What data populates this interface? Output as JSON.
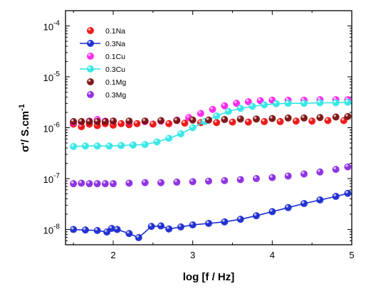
{
  "chart_data": {
    "type": "scatter",
    "title": "",
    "xlabel": "log [f / Hz]",
    "ylabel": "σ'/ S.cm",
    "ylabel_sup": "-1",
    "xlim": [
      1.4,
      5.0
    ],
    "ylim_log10": [
      -8.3,
      -3.7
    ],
    "yscale": "log",
    "x_ticks": [
      2,
      3,
      4,
      5
    ],
    "x_tick_labels": [
      "2",
      "3",
      "4",
      "5"
    ],
    "y_ticks_log10": [
      -8,
      -7,
      -6,
      -5,
      -4
    ],
    "y_tick_labels": [
      {
        "base": "10",
        "exp": "-8"
      },
      {
        "base": "10",
        "exp": "-7"
      },
      {
        "base": "10",
        "exp": "-6"
      },
      {
        "base": "10",
        "exp": "-5"
      },
      {
        "base": "10",
        "exp": "-4"
      }
    ],
    "grid": false,
    "legend_position": "top-left",
    "series": [
      {
        "name": "0.1Na",
        "color": "#ee1111",
        "line": false,
        "points_log10": [
          [
            1.5,
            -5.93
          ],
          [
            1.6,
            -5.98
          ],
          [
            1.7,
            -5.93
          ],
          [
            1.8,
            -5.96
          ],
          [
            1.9,
            -5.92
          ],
          [
            2.0,
            -5.95
          ],
          [
            2.1,
            -5.92
          ],
          [
            2.2,
            -5.94
          ],
          [
            2.3,
            -5.92
          ],
          [
            2.5,
            -5.93
          ],
          [
            2.7,
            -5.92
          ],
          [
            2.9,
            -5.91
          ],
          [
            3.1,
            -5.9
          ],
          [
            3.3,
            -5.9
          ],
          [
            3.5,
            -5.89
          ],
          [
            3.7,
            -5.89
          ],
          [
            3.9,
            -5.88
          ],
          [
            4.1,
            -5.88
          ],
          [
            4.3,
            -5.87
          ],
          [
            4.5,
            -5.87
          ],
          [
            4.7,
            -5.86
          ],
          [
            4.9,
            -5.86
          ]
        ]
      },
      {
        "name": "0.3Na",
        "color": "#1a2bd0",
        "line": true,
        "points_log10": [
          [
            1.5,
            -8.0
          ],
          [
            1.65,
            -8.01
          ],
          [
            1.8,
            -8.02
          ],
          [
            1.92,
            -8.05
          ],
          [
            1.98,
            -7.98
          ],
          [
            2.05,
            -8.0
          ],
          [
            2.2,
            -8.08
          ],
          [
            2.32,
            -8.16
          ],
          [
            2.48,
            -7.94
          ],
          [
            2.6,
            -7.93
          ],
          [
            2.7,
            -7.99
          ],
          [
            2.85,
            -7.95
          ],
          [
            3.0,
            -7.91
          ],
          [
            3.2,
            -7.88
          ],
          [
            3.4,
            -7.85
          ],
          [
            3.6,
            -7.8
          ],
          [
            3.8,
            -7.73
          ],
          [
            4.0,
            -7.65
          ],
          [
            4.2,
            -7.57
          ],
          [
            4.4,
            -7.49
          ],
          [
            4.6,
            -7.42
          ],
          [
            4.8,
            -7.35
          ],
          [
            4.95,
            -7.29
          ]
        ]
      },
      {
        "name": "0.1Cu",
        "color": "#ff22ee",
        "line": false,
        "points_log10": [
          [
            1.5,
            -5.9
          ],
          [
            1.6,
            -5.88
          ],
          [
            1.7,
            -5.87
          ],
          [
            1.8,
            -5.84
          ],
          [
            1.9,
            -5.87
          ],
          [
            2.0,
            -5.87
          ],
          [
            2.2,
            -5.88
          ],
          [
            2.4,
            -5.88
          ],
          [
            2.6,
            -5.87
          ],
          [
            2.8,
            -5.85
          ],
          [
            2.95,
            -5.8
          ],
          [
            3.1,
            -5.72
          ],
          [
            3.25,
            -5.64
          ],
          [
            3.4,
            -5.57
          ],
          [
            3.55,
            -5.52
          ],
          [
            3.7,
            -5.49
          ],
          [
            3.85,
            -5.47
          ],
          [
            4.0,
            -5.46
          ],
          [
            4.2,
            -5.46
          ],
          [
            4.4,
            -5.46
          ],
          [
            4.6,
            -5.45
          ],
          [
            4.8,
            -5.45
          ],
          [
            4.95,
            -5.45
          ]
        ]
      },
      {
        "name": "0.3Cu",
        "color": "#33e6e6",
        "line": true,
        "points_log10": [
          [
            1.5,
            -6.37
          ],
          [
            1.65,
            -6.36
          ],
          [
            1.8,
            -6.36
          ],
          [
            1.95,
            -6.36
          ],
          [
            2.1,
            -6.35
          ],
          [
            2.25,
            -6.34
          ],
          [
            2.4,
            -6.33
          ],
          [
            2.55,
            -6.28
          ],
          [
            2.7,
            -6.21
          ],
          [
            2.85,
            -6.12
          ],
          [
            3.0,
            -6.0
          ],
          [
            3.15,
            -5.88
          ],
          [
            3.3,
            -5.77
          ],
          [
            3.45,
            -5.68
          ],
          [
            3.6,
            -5.62
          ],
          [
            3.75,
            -5.58
          ],
          [
            3.9,
            -5.55
          ],
          [
            4.05,
            -5.53
          ],
          [
            4.2,
            -5.52
          ],
          [
            4.4,
            -5.52
          ],
          [
            4.6,
            -5.51
          ],
          [
            4.8,
            -5.51
          ],
          [
            4.95,
            -5.5
          ]
        ]
      },
      {
        "name": "0.1Mg",
        "color": "#7a0f0f",
        "line": false,
        "points_log10": [
          [
            1.5,
            -5.88
          ],
          [
            1.6,
            -5.88
          ],
          [
            1.7,
            -5.88
          ],
          [
            1.8,
            -5.88
          ],
          [
            1.9,
            -5.88
          ],
          [
            2.0,
            -5.87
          ],
          [
            2.2,
            -5.87
          ],
          [
            2.4,
            -5.87
          ],
          [
            2.6,
            -5.86
          ],
          [
            2.8,
            -5.86
          ],
          [
            3.0,
            -5.85
          ],
          [
            3.2,
            -5.85
          ],
          [
            3.4,
            -5.84
          ],
          [
            3.6,
            -5.83
          ],
          [
            3.8,
            -5.83
          ],
          [
            4.0,
            -5.82
          ],
          [
            4.2,
            -5.81
          ],
          [
            4.4,
            -5.81
          ],
          [
            4.6,
            -5.8
          ],
          [
            4.8,
            -5.79
          ],
          [
            4.95,
            -5.78
          ]
        ]
      },
      {
        "name": "0.3Mg",
        "color": "#8a2be2",
        "line": false,
        "points_log10": [
          [
            1.5,
            -7.1
          ],
          [
            1.6,
            -7.09
          ],
          [
            1.7,
            -7.1
          ],
          [
            1.8,
            -7.1
          ],
          [
            1.9,
            -7.1
          ],
          [
            2.0,
            -7.1
          ],
          [
            2.2,
            -7.09
          ],
          [
            2.4,
            -7.08
          ],
          [
            2.6,
            -7.08
          ],
          [
            2.8,
            -7.07
          ],
          [
            3.0,
            -7.06
          ],
          [
            3.2,
            -7.05
          ],
          [
            3.4,
            -7.04
          ],
          [
            3.6,
            -7.02
          ],
          [
            3.8,
            -7.0
          ],
          [
            4.0,
            -6.98
          ],
          [
            4.2,
            -6.95
          ],
          [
            4.4,
            -6.91
          ],
          [
            4.6,
            -6.87
          ],
          [
            4.8,
            -6.82
          ],
          [
            4.95,
            -6.77
          ]
        ]
      }
    ]
  }
}
